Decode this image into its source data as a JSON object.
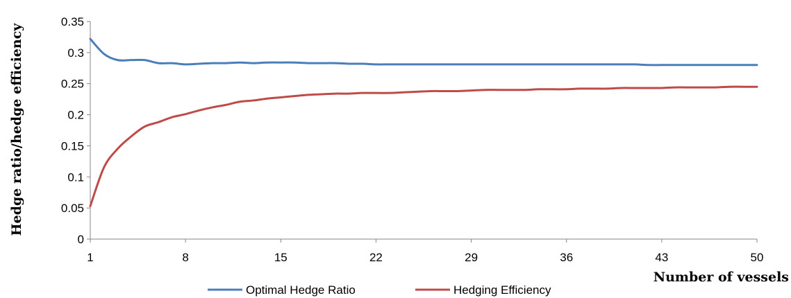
{
  "chart_data": {
    "type": "line",
    "xlabel": "Number of vessels",
    "ylabel": "Hedge ratio/hedge efficiency",
    "xlim": [
      1,
      50
    ],
    "ylim": [
      0,
      0.35
    ],
    "x_ticks": [
      1,
      8,
      15,
      22,
      29,
      36,
      43,
      50
    ],
    "y_ticks": [
      "0",
      "0.05",
      "0.1",
      "0.15",
      "0.2",
      "0.25",
      "0.3",
      "0.35"
    ],
    "grid": false,
    "legend_position": "bottom",
    "x": [
      1,
      2,
      3,
      4,
      5,
      6,
      7,
      8,
      9,
      10,
      11,
      12,
      13,
      14,
      15,
      16,
      17,
      18,
      19,
      20,
      21,
      22,
      23,
      24,
      25,
      26,
      27,
      28,
      29,
      30,
      31,
      32,
      33,
      34,
      35,
      36,
      37,
      38,
      39,
      40,
      41,
      42,
      43,
      44,
      45,
      46,
      47,
      48,
      49,
      50
    ],
    "series": [
      {
        "name": "Optimal Hedge Ratio",
        "color": "#4a7ebb",
        "values": [
          0.322,
          0.298,
          0.288,
          0.288,
          0.288,
          0.283,
          0.283,
          0.281,
          0.282,
          0.283,
          0.283,
          0.284,
          0.283,
          0.284,
          0.284,
          0.284,
          0.283,
          0.283,
          0.283,
          0.282,
          0.282,
          0.281,
          0.281,
          0.281,
          0.281,
          0.281,
          0.281,
          0.281,
          0.281,
          0.281,
          0.281,
          0.281,
          0.281,
          0.281,
          0.281,
          0.281,
          0.281,
          0.281,
          0.281,
          0.281,
          0.281,
          0.28,
          0.28,
          0.28,
          0.28,
          0.28,
          0.28,
          0.28,
          0.28,
          0.28
        ]
      },
      {
        "name": "Hedging Efficiency",
        "color": "#be4b48",
        "values": [
          0.053,
          0.115,
          0.145,
          0.165,
          0.181,
          0.188,
          0.196,
          0.201,
          0.207,
          0.212,
          0.216,
          0.221,
          0.223,
          0.226,
          0.228,
          0.23,
          0.232,
          0.233,
          0.234,
          0.234,
          0.235,
          0.235,
          0.235,
          0.236,
          0.237,
          0.238,
          0.238,
          0.238,
          0.239,
          0.24,
          0.24,
          0.24,
          0.24,
          0.241,
          0.241,
          0.241,
          0.242,
          0.242,
          0.242,
          0.243,
          0.243,
          0.243,
          0.243,
          0.244,
          0.244,
          0.244,
          0.244,
          0.245,
          0.245,
          0.245
        ]
      }
    ]
  }
}
